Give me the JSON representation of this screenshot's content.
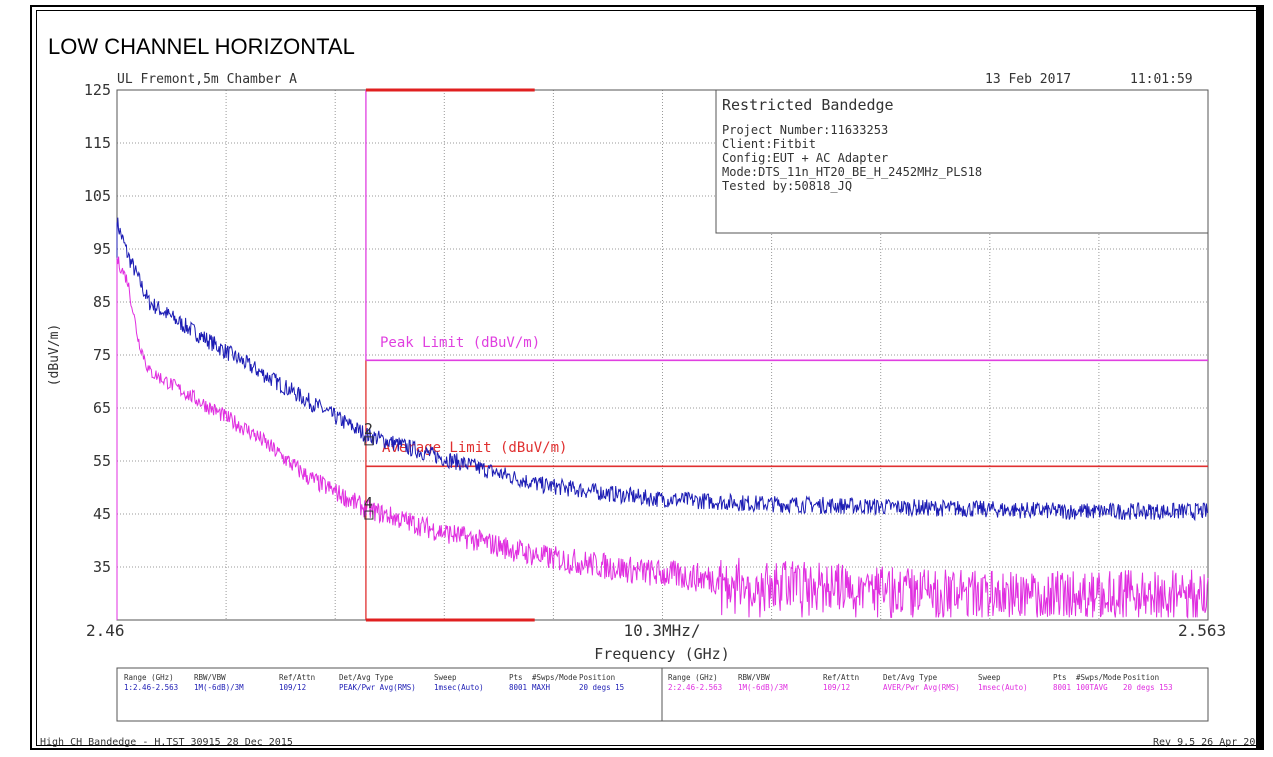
{
  "page_title": "LOW CHANNEL HORIZONTAL",
  "header": {
    "site": "UL Fremont,5m Chamber A",
    "date": "13 Feb 2017",
    "time": "11:01:59"
  },
  "info_box": {
    "title": "Restricted Bandedge",
    "lines": [
      "Project Number:11633253",
      "Client:Fitbit",
      "Config:EUT + AC Adapter",
      "Mode:DTS_11n_HT20_BE_H_2452MHz_PLS18",
      "Tested by:50818_JQ"
    ]
  },
  "colors": {
    "peak_trace": "#1c1cb4",
    "avg_trace": "#e02ee0",
    "peak_limit": "#e040e0",
    "avg_limit": "#e03030",
    "band_marker": "#e02020",
    "grid": "#9a9a9a"
  },
  "chart_data": {
    "type": "line",
    "x_axis": {
      "min_label": "2.46",
      "center_label": "10.3MHz/",
      "max_label": "2.563",
      "title": "Frequency (GHz)",
      "range": [
        2.46,
        2.563
      ]
    },
    "y_axis": {
      "title": "(dBuV/m)",
      "range": [
        25,
        125
      ],
      "ticks": [
        125,
        115,
        105,
        95,
        85,
        75,
        65,
        55,
        45,
        35
      ],
      "tick_labels": [
        "125",
        "115",
        "105",
        "95",
        "85",
        "75",
        "65",
        "55",
        "45",
        "35"
      ]
    },
    "grid": true,
    "limits": [
      {
        "name": "Peak Limit (dBuV/m)",
        "value": 74
      },
      {
        "name": "Average Limit (dBuV/m)",
        "value": 54
      }
    ],
    "restricted_band_start_ghz": 2.4835,
    "series": [
      {
        "x": [
          2.46,
          2.461,
          2.463,
          2.466,
          2.47,
          2.475,
          2.48,
          2.4835,
          2.49,
          2.5,
          2.51,
          2.52,
          2.53,
          2.54,
          2.55,
          2.563
        ],
        "y": [
          100,
          94,
          85,
          81,
          76,
          70,
          64,
          60,
          56,
          50.5,
          48,
          47,
          46.5,
          46,
          45.5,
          45.5
        ]
      },
      {
        "x": [
          2.46,
          2.461,
          2.462,
          2.463,
          2.468,
          2.473,
          2.478,
          2.4835,
          2.49,
          2.5,
          2.51,
          2.52,
          2.53,
          2.54,
          2.55,
          2.563
        ],
        "y": [
          93,
          89,
          78,
          72,
          66,
          60,
          52,
          46,
          42,
          37,
          34,
          32,
          31,
          30,
          30,
          30
        ]
      }
    ],
    "markers": [
      {
        "label": "2",
        "x": 2.4835,
        "y": 60.5
      },
      {
        "label": "4",
        "x": 2.4835,
        "y": 46.5
      }
    ]
  },
  "settings_table": {
    "left": {
      "headers": [
        "Range (GHz)",
        "RBW/VBW",
        "Ref/Attn",
        "Det/Avg Type",
        "Sweep",
        "Pts",
        "#Swps/Mode",
        "Position"
      ],
      "values": [
        "1:2.46-2.563",
        "1M(-6dB)/3M",
        "109/12",
        "PEAK/Pwr Avg(RMS)",
        "1msec(Auto)",
        "8001",
        "MAXH",
        "20 degs 15"
      ]
    },
    "right": {
      "headers": [
        "Range (GHz)",
        "RBW/VBW",
        "Ref/Attn",
        "Det/Avg Type",
        "Sweep",
        "Pts",
        "#Swps/Mode",
        "Position"
      ],
      "values": [
        "2:2.46-2.563",
        "1M(-6dB)/3M",
        "109/12",
        "AVER/Pwr Avg(RMS)",
        "1msec(Auto)",
        "8001",
        "100TAVG",
        "20 degs 153"
      ]
    }
  },
  "footer": {
    "left": "High CH Bandedge - H.TST 30915 28 Dec 2015",
    "right": "Rev 9.5 26 Apr 20"
  }
}
